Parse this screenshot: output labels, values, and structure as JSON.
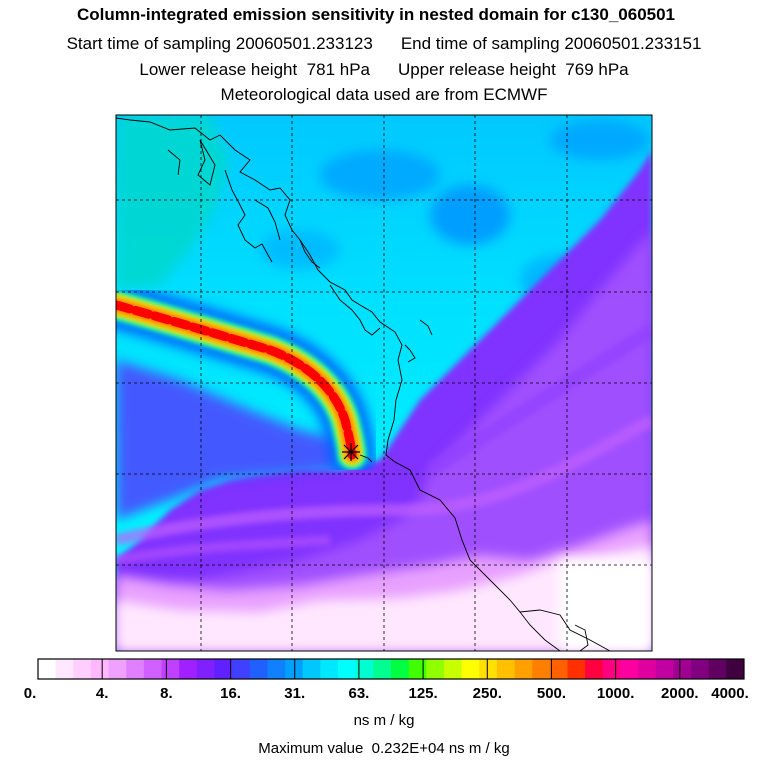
{
  "header": {
    "title": "Column-integrated emission sensitivity in nested domain for c130_060501",
    "start_label": "Start time of sampling",
    "start_value": "20060501.233123",
    "end_label": "End time of sampling",
    "end_value": "20060501.233151",
    "lower_label": "Lower release height",
    "lower_value": "781 hPa",
    "upper_label": "Upper release height",
    "upper_value": "769 hPa",
    "met_line": "Meteorological data used are from ECMWF"
  },
  "map": {
    "background_color": "#00ffff",
    "plume_colors": [
      "#ff0000",
      "#ff8000",
      "#ffff00"
    ],
    "release_marker": "star-marker"
  },
  "colorbar": {
    "colors": [
      "#ffffff",
      "#ffe8ff",
      "#ffd0ff",
      "#ffb8ff",
      "#f0a0ff",
      "#e080ff",
      "#d060ff",
      "#c040ff",
      "#a020ff",
      "#8020ff",
      "#6020ff",
      "#4040ff",
      "#2060ff",
      "#1080ff",
      "#00a0ff",
      "#00c8ff",
      "#00e8ff",
      "#00ffff",
      "#00ffd0",
      "#00ff90",
      "#00ff40",
      "#40ff00",
      "#90ff00",
      "#c8ff00",
      "#ffff00",
      "#ffe000",
      "#ffc000",
      "#ffa000",
      "#ff8000",
      "#ff6000",
      "#ff3000",
      "#ff0040",
      "#ff0080",
      "#ff00a0",
      "#e000a0",
      "#c000a0",
      "#a00090",
      "#800080",
      "#600060",
      "#400040"
    ],
    "tick_labels": [
      "0.",
      "4.",
      "8.",
      "16.",
      "31.",
      "63.",
      "125.",
      "250.",
      "500.",
      "1000.",
      "2000.",
      "4000."
    ],
    "units": "ns m / kg"
  },
  "footer": {
    "max_label": "Maximum value",
    "max_value": "0.232E+04 ns m / kg"
  }
}
